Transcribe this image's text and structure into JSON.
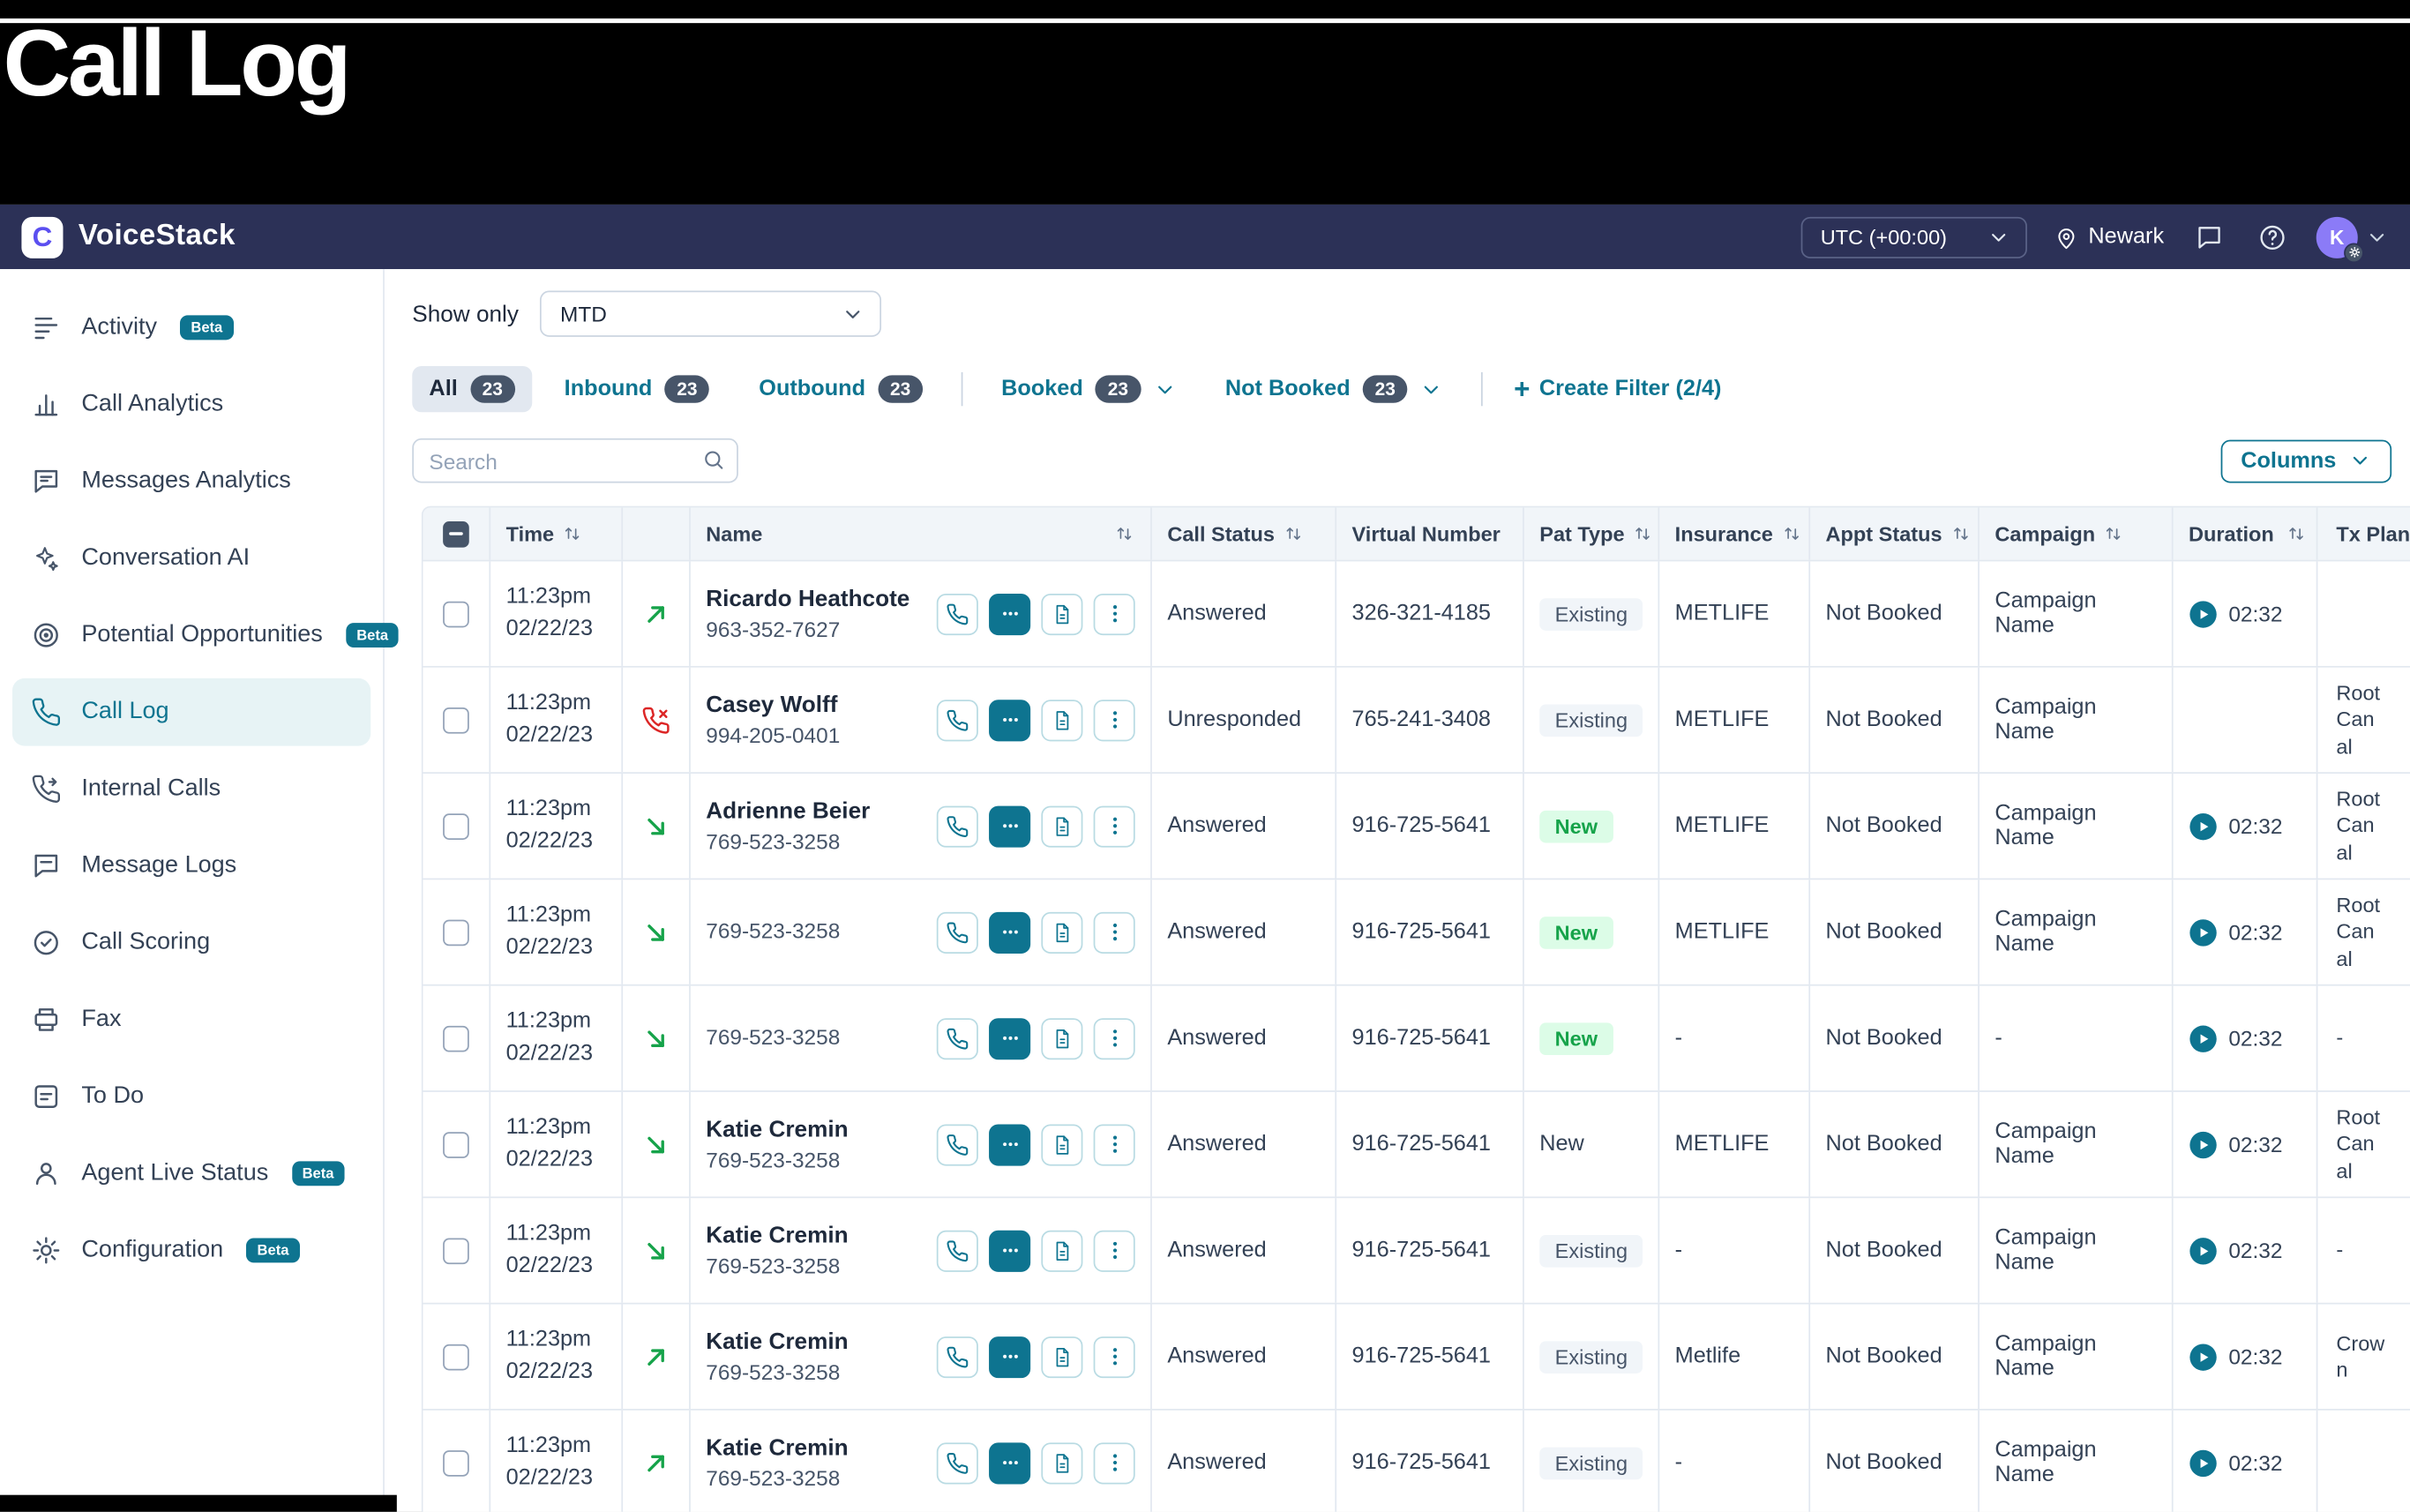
{
  "banner": {
    "title": "Call Log"
  },
  "navbar": {
    "brand": "VoiceStack",
    "logo_glyph": "C",
    "timezone": "UTC (+00:00)",
    "location": "Newark",
    "avatar_initial": "K",
    "icons": [
      "chat-bubble-icon",
      "help-icon",
      "location-pin-icon",
      "chevron-down-icon"
    ]
  },
  "colors": {
    "accent_teal": "#0e7490",
    "navbar_navy": "#2c3157",
    "success_green": "#16a34a",
    "missed_red": "#dc2626"
  },
  "sidebar": {
    "beta_label": "Beta",
    "items": [
      {
        "label": "Activity",
        "icon": "activity-icon",
        "beta": true,
        "active": false
      },
      {
        "label": "Call Analytics",
        "icon": "call-analytics-icon",
        "beta": false,
        "active": false
      },
      {
        "label": "Messages Analytics",
        "icon": "messages-analytics-icon",
        "beta": false,
        "active": false
      },
      {
        "label": "Conversation AI",
        "icon": "conversation-ai-icon",
        "beta": false,
        "active": false
      },
      {
        "label": "Potential Opportunities",
        "icon": "potential-opportunities-icon",
        "beta": true,
        "active": false
      },
      {
        "label": "Call Log",
        "icon": "call-log-icon",
        "beta": false,
        "active": true
      },
      {
        "label": "Internal Calls",
        "icon": "internal-calls-icon",
        "beta": false,
        "active": false
      },
      {
        "label": "Message Logs",
        "icon": "message-logs-icon",
        "beta": false,
        "active": false
      },
      {
        "label": "Call Scoring",
        "icon": "call-scoring-icon",
        "beta": false,
        "active": false
      },
      {
        "label": "Fax",
        "icon": "fax-icon",
        "beta": false,
        "active": false
      },
      {
        "label": "To Do",
        "icon": "todo-icon",
        "beta": false,
        "active": false
      },
      {
        "label": "Agent Live Status",
        "icon": "agent-live-status-icon",
        "beta": true,
        "active": false
      },
      {
        "label": "Configuration",
        "icon": "configuration-icon",
        "beta": true,
        "active": false
      }
    ]
  },
  "toolbar": {
    "show_only_label": "Show only",
    "period_value": "MTD",
    "tabs": [
      {
        "label": "All",
        "count": "23",
        "active": true,
        "chevron": false
      },
      {
        "label": "Inbound",
        "count": "23",
        "active": false,
        "chevron": false
      },
      {
        "label": "Outbound",
        "count": "23",
        "active": false,
        "chevron": false
      },
      {
        "label": "Booked",
        "count": "23",
        "active": false,
        "chevron": true
      },
      {
        "label": "Not Booked",
        "count": "23",
        "active": false,
        "chevron": true
      }
    ],
    "create_filter_label": "Create Filter (2/4)",
    "search_placeholder": "Search",
    "columns_label": "Columns"
  },
  "table": {
    "headers": [
      {
        "label": "Time",
        "sortable": true
      },
      {
        "label": "Name",
        "sortable": true
      },
      {
        "label": "Call Status",
        "sortable": true
      },
      {
        "label": "Virtual Number",
        "sortable": false
      },
      {
        "label": "Pat Type",
        "sortable": true
      },
      {
        "label": "Insurance",
        "sortable": true
      },
      {
        "label": "Appt Status",
        "sortable": true
      },
      {
        "label": "Campaign",
        "sortable": true
      },
      {
        "label": "Duration",
        "sortable": true
      },
      {
        "label": "Tx Plan",
        "sortable": false
      }
    ],
    "row_actions": [
      "call-icon",
      "message-icon",
      "document-icon",
      "more-icon"
    ],
    "rows": [
      {
        "time_line1": "11:23pm",
        "time_line2": "02/22/23",
        "direction_icon": "outbound-call-icon",
        "name": "Ricardo Heathcote",
        "phone": "963-352-7627",
        "call_status": "Answered",
        "virtual_number": "326-321-4185",
        "pat_type": "Existing",
        "pat_type_variant": "grey",
        "insurance": "METLIFE",
        "appt_status": "Not Booked",
        "campaign": "Campaign Name",
        "duration": "02:32",
        "tx_plan": ""
      },
      {
        "time_line1": "11:23pm",
        "time_line2": "02/22/23",
        "direction_icon": "missed-call-icon",
        "name": "Casey Wolff",
        "phone": "994-205-0401",
        "call_status": "Unresponded",
        "virtual_number": "765-241-3408",
        "pat_type": "Existing",
        "pat_type_variant": "grey",
        "insurance": "METLIFE",
        "appt_status": "Not Booked",
        "campaign": "Campaign Name",
        "duration": "",
        "tx_plan": "Root Canal"
      },
      {
        "time_line1": "11:23pm",
        "time_line2": "02/22/23",
        "direction_icon": "inbound-call-icon",
        "name": "Adrienne Beier",
        "phone": "769-523-3258",
        "call_status": "Answered",
        "virtual_number": "916-725-5641",
        "pat_type": "New",
        "pat_type_variant": "green",
        "insurance": "METLIFE",
        "appt_status": "Not Booked",
        "campaign": "Campaign Name",
        "duration": "02:32",
        "tx_plan": "Root Canal"
      },
      {
        "time_line1": "11:23pm",
        "time_line2": "02/22/23",
        "direction_icon": "inbound-call-icon",
        "name": "",
        "phone": "769-523-3258",
        "call_status": "Answered",
        "virtual_number": "916-725-5641",
        "pat_type": "New",
        "pat_type_variant": "green",
        "insurance": "METLIFE",
        "appt_status": "Not Booked",
        "campaign": "Campaign Name",
        "duration": "02:32",
        "tx_plan": "Root Canal"
      },
      {
        "time_line1": "11:23pm",
        "time_line2": "02/22/23",
        "direction_icon": "inbound-call-icon",
        "name": "",
        "phone": "769-523-3258",
        "call_status": "Answered",
        "virtual_number": "916-725-5641",
        "pat_type": "New",
        "pat_type_variant": "green",
        "insurance": "-",
        "appt_status": "Not Booked",
        "campaign": "-",
        "duration": "02:32",
        "tx_plan": "-"
      },
      {
        "time_line1": "11:23pm",
        "time_line2": "02/22/23",
        "direction_icon": "inbound-call-icon",
        "name": "Katie Cremin",
        "phone": "769-523-3258",
        "call_status": "Answered",
        "virtual_number": "916-725-5641",
        "pat_type": "New",
        "pat_type_variant": "plain",
        "insurance": "METLIFE",
        "appt_status": "Not Booked",
        "campaign": "Campaign Name",
        "duration": "02:32",
        "tx_plan": "Root Canal"
      },
      {
        "time_line1": "11:23pm",
        "time_line2": "02/22/23",
        "direction_icon": "inbound-call-icon",
        "name": "Katie Cremin",
        "phone": "769-523-3258",
        "call_status": "Answered",
        "virtual_number": "916-725-5641",
        "pat_type": "Existing",
        "pat_type_variant": "grey",
        "insurance": "-",
        "appt_status": "Not Booked",
        "campaign": "Campaign Name",
        "duration": "02:32",
        "tx_plan": "-"
      },
      {
        "time_line1": "11:23pm",
        "time_line2": "02/22/23",
        "direction_icon": "outbound-call-icon",
        "name": "Katie Cremin",
        "phone": "769-523-3258",
        "call_status": "Answered",
        "virtual_number": "916-725-5641",
        "pat_type": "Existing",
        "pat_type_variant": "grey",
        "insurance": "Metlife",
        "appt_status": "Not Booked",
        "campaign": "Campaign Name",
        "duration": "02:32",
        "tx_plan": "Crown"
      },
      {
        "time_line1": "11:23pm",
        "time_line2": "02/22/23",
        "direction_icon": "outbound-call-icon",
        "name": "Katie Cremin",
        "phone": "769-523-3258",
        "call_status": "Answered",
        "virtual_number": "916-725-5641",
        "pat_type": "Existing",
        "pat_type_variant": "grey",
        "insurance": "-",
        "appt_status": "Not Booked",
        "campaign": "Campaign Name",
        "duration": "02:32",
        "tx_plan": ""
      }
    ]
  }
}
